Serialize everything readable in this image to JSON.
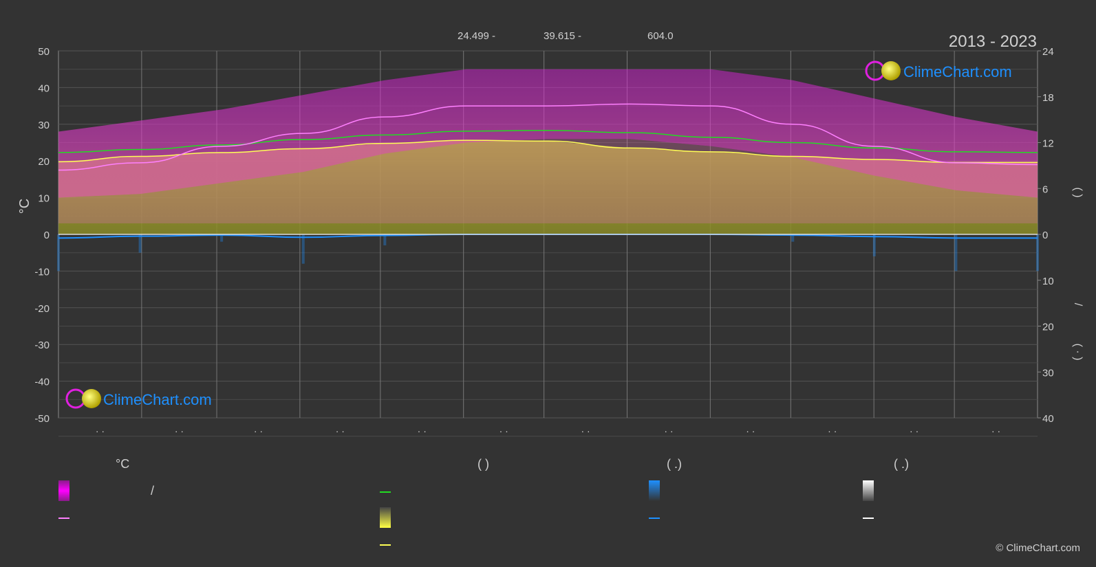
{
  "header": {
    "range": "2013 - 2023",
    "latitude": "24.499 -",
    "longitude": "39.615 -",
    "elevation": "604.0"
  },
  "axis_left": {
    "unit": "°C"
  },
  "axis_right": {
    "top_bracket": "(      )",
    "bottom_slash": "/",
    "bottom_bracket": "( · )"
  },
  "branding": {
    "logo_text": "ClimeChart.com",
    "copyright": "© ClimeChart.com"
  },
  "month_labels": [
    "· ·",
    "· ·",
    "· ·",
    "· ·",
    "· ·",
    "· ·",
    "· ·",
    "· ·",
    "· ·",
    "· ·",
    "· ·",
    "· ·"
  ],
  "legend": {
    "temp_header": "°C",
    "sun_header": "(          )",
    "rain_header": "(   .)",
    "snow_header": "(   .)",
    "temp_range_label": "/"
  },
  "colors": {
    "background": "#333333",
    "temp_range": "#e020e0",
    "temp_mean": "#ff80ff",
    "daylight": "#22dd22",
    "sunshine": "#e8e840",
    "sunshine_line": "#ffff55",
    "rain": "#1e90ff",
    "snow": "#ffffff",
    "logo_blue": "#1e90ff"
  },
  "chart_data": {
    "type": "area",
    "title": "",
    "ylabel": "°C",
    "ylim": [
      -50,
      50
    ],
    "y2_upper_lim": [
      0,
      24
    ],
    "y2_lower_lim": [
      0,
      40
    ],
    "yticks_left": [
      50,
      40,
      30,
      20,
      10,
      0,
      -10,
      -20,
      -30,
      -40,
      -50
    ],
    "yticks_right_upper": [
      24,
      18,
      12,
      6,
      0
    ],
    "yticks_right_lower": [
      10,
      20,
      30,
      40
    ],
    "x": [
      0,
      1,
      2,
      3,
      4,
      5,
      6,
      7,
      8,
      9,
      10,
      11,
      12
    ],
    "series": [
      {
        "key": "max_band",
        "values": [
          28,
          31,
          34,
          38,
          42,
          45,
          45,
          45,
          45,
          42,
          37,
          32,
          28
        ]
      },
      {
        "key": "min_band",
        "values": [
          10,
          11,
          14,
          17,
          22,
          25,
          26,
          26,
          24,
          21,
          16,
          12,
          10
        ]
      },
      {
        "key": "mean_temp",
        "values": [
          17.5,
          19.5,
          24,
          27.5,
          32,
          35,
          35,
          35.5,
          35,
          30,
          24,
          19.5,
          19
        ]
      },
      {
        "key": "daylight_h",
        "values": [
          10.7,
          11.1,
          11.7,
          12.4,
          13.0,
          13.5,
          13.6,
          13.3,
          12.7,
          12.0,
          11.3,
          10.8,
          10.7
        ]
      },
      {
        "key": "sunshine_h",
        "values": [
          9.5,
          10.2,
          10.7,
          11.2,
          11.9,
          12.3,
          12.2,
          11.3,
          10.8,
          10.2,
          9.8,
          9.4,
          9.4
        ]
      },
      {
        "key": "rain_mm",
        "values": [
          1,
          0.5,
          0.2,
          0.8,
          0.3,
          0,
          0,
          0,
          0,
          0.2,
          0.6,
          1,
          1
        ]
      }
    ]
  }
}
